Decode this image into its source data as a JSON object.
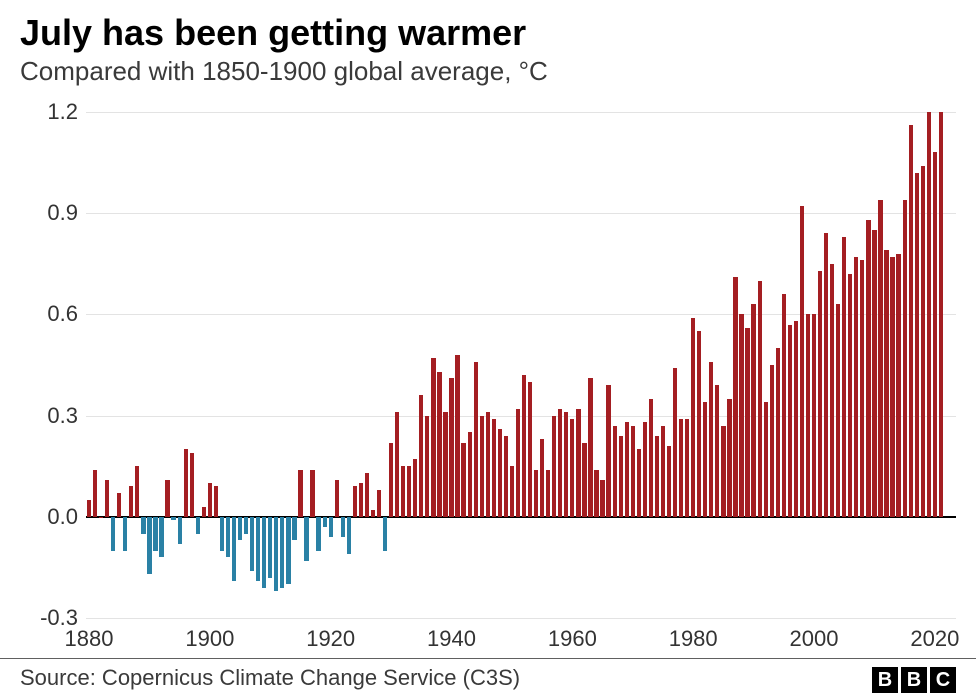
{
  "title": "July has been getting warmer",
  "subtitle": "Compared with 1850-1900 global average, °C",
  "source": "Source: Copernicus Climate Change Service (C3S)",
  "logo_letters": [
    "B",
    "B",
    "C"
  ],
  "chart": {
    "type": "bar",
    "pos_color": "#a41e22",
    "neg_color": "#2a81a5",
    "background_color": "#ffffff",
    "grid_color": "#e3e3e3",
    "zero_line_color": "#000000",
    "title_fontsize": 36,
    "subtitle_fontsize": 26,
    "tick_fontsize": 22,
    "ylim": [
      -0.3,
      1.2
    ],
    "ytick_step": 0.3,
    "yticks": [
      -0.3,
      0.0,
      0.3,
      0.6,
      0.9,
      1.2
    ],
    "xticks": [
      1880,
      1900,
      1920,
      1940,
      1960,
      1980,
      2000,
      2020
    ],
    "x_start": 1880,
    "x_end": 2023,
    "bar_rel_width": 0.7,
    "series": [
      {
        "year": 1880,
        "value": 0.05
      },
      {
        "year": 1881,
        "value": 0.14
      },
      {
        "year": 1882,
        "value": 0.0
      },
      {
        "year": 1883,
        "value": 0.11
      },
      {
        "year": 1884,
        "value": -0.1
      },
      {
        "year": 1885,
        "value": 0.07
      },
      {
        "year": 1886,
        "value": -0.1
      },
      {
        "year": 1887,
        "value": 0.09
      },
      {
        "year": 1888,
        "value": 0.15
      },
      {
        "year": 1889,
        "value": -0.05
      },
      {
        "year": 1890,
        "value": -0.17
      },
      {
        "year": 1891,
        "value": -0.1
      },
      {
        "year": 1892,
        "value": -0.12
      },
      {
        "year": 1893,
        "value": 0.11
      },
      {
        "year": 1894,
        "value": -0.01
      },
      {
        "year": 1895,
        "value": -0.08
      },
      {
        "year": 1896,
        "value": 0.2
      },
      {
        "year": 1897,
        "value": 0.19
      },
      {
        "year": 1898,
        "value": -0.05
      },
      {
        "year": 1899,
        "value": 0.03
      },
      {
        "year": 1900,
        "value": 0.1
      },
      {
        "year": 1901,
        "value": 0.09
      },
      {
        "year": 1902,
        "value": -0.1
      },
      {
        "year": 1903,
        "value": -0.12
      },
      {
        "year": 1904,
        "value": -0.19
      },
      {
        "year": 1905,
        "value": -0.07
      },
      {
        "year": 1906,
        "value": -0.05
      },
      {
        "year": 1907,
        "value": -0.16
      },
      {
        "year": 1908,
        "value": -0.19
      },
      {
        "year": 1909,
        "value": -0.21
      },
      {
        "year": 1910,
        "value": -0.18
      },
      {
        "year": 1911,
        "value": -0.22
      },
      {
        "year": 1912,
        "value": -0.21
      },
      {
        "year": 1913,
        "value": -0.2
      },
      {
        "year": 1914,
        "value": -0.07
      },
      {
        "year": 1915,
        "value": 0.14
      },
      {
        "year": 1916,
        "value": -0.13
      },
      {
        "year": 1917,
        "value": 0.14
      },
      {
        "year": 1918,
        "value": -0.1
      },
      {
        "year": 1919,
        "value": -0.03
      },
      {
        "year": 1920,
        "value": -0.06
      },
      {
        "year": 1921,
        "value": 0.11
      },
      {
        "year": 1922,
        "value": -0.06
      },
      {
        "year": 1923,
        "value": -0.11
      },
      {
        "year": 1924,
        "value": 0.09
      },
      {
        "year": 1925,
        "value": 0.1
      },
      {
        "year": 1926,
        "value": 0.13
      },
      {
        "year": 1927,
        "value": 0.02
      },
      {
        "year": 1928,
        "value": 0.08
      },
      {
        "year": 1929,
        "value": -0.1
      },
      {
        "year": 1930,
        "value": 0.22
      },
      {
        "year": 1931,
        "value": 0.31
      },
      {
        "year": 1932,
        "value": 0.15
      },
      {
        "year": 1933,
        "value": 0.15
      },
      {
        "year": 1934,
        "value": 0.17
      },
      {
        "year": 1935,
        "value": 0.36
      },
      {
        "year": 1936,
        "value": 0.3
      },
      {
        "year": 1937,
        "value": 0.47
      },
      {
        "year": 1938,
        "value": 0.43
      },
      {
        "year": 1939,
        "value": 0.31
      },
      {
        "year": 1940,
        "value": 0.41
      },
      {
        "year": 1941,
        "value": 0.48
      },
      {
        "year": 1942,
        "value": 0.22
      },
      {
        "year": 1943,
        "value": 0.25
      },
      {
        "year": 1944,
        "value": 0.46
      },
      {
        "year": 1945,
        "value": 0.3
      },
      {
        "year": 1946,
        "value": 0.31
      },
      {
        "year": 1947,
        "value": 0.29
      },
      {
        "year": 1948,
        "value": 0.26
      },
      {
        "year": 1949,
        "value": 0.24
      },
      {
        "year": 1950,
        "value": 0.15
      },
      {
        "year": 1951,
        "value": 0.32
      },
      {
        "year": 1952,
        "value": 0.42
      },
      {
        "year": 1953,
        "value": 0.4
      },
      {
        "year": 1954,
        "value": 0.14
      },
      {
        "year": 1955,
        "value": 0.23
      },
      {
        "year": 1956,
        "value": 0.14
      },
      {
        "year": 1957,
        "value": 0.3
      },
      {
        "year": 1958,
        "value": 0.32
      },
      {
        "year": 1959,
        "value": 0.31
      },
      {
        "year": 1960,
        "value": 0.29
      },
      {
        "year": 1961,
        "value": 0.32
      },
      {
        "year": 1962,
        "value": 0.22
      },
      {
        "year": 1963,
        "value": 0.41
      },
      {
        "year": 1964,
        "value": 0.14
      },
      {
        "year": 1965,
        "value": 0.11
      },
      {
        "year": 1966,
        "value": 0.39
      },
      {
        "year": 1967,
        "value": 0.27
      },
      {
        "year": 1968,
        "value": 0.24
      },
      {
        "year": 1969,
        "value": 0.28
      },
      {
        "year": 1970,
        "value": 0.27
      },
      {
        "year": 1971,
        "value": 0.2
      },
      {
        "year": 1972,
        "value": 0.28
      },
      {
        "year": 1973,
        "value": 0.35
      },
      {
        "year": 1974,
        "value": 0.24
      },
      {
        "year": 1975,
        "value": 0.27
      },
      {
        "year": 1976,
        "value": 0.21
      },
      {
        "year": 1977,
        "value": 0.44
      },
      {
        "year": 1978,
        "value": 0.29
      },
      {
        "year": 1979,
        "value": 0.29
      },
      {
        "year": 1980,
        "value": 0.59
      },
      {
        "year": 1981,
        "value": 0.55
      },
      {
        "year": 1982,
        "value": 0.34
      },
      {
        "year": 1983,
        "value": 0.46
      },
      {
        "year": 1984,
        "value": 0.39
      },
      {
        "year": 1985,
        "value": 0.27
      },
      {
        "year": 1986,
        "value": 0.35
      },
      {
        "year": 1987,
        "value": 0.71
      },
      {
        "year": 1988,
        "value": 0.6
      },
      {
        "year": 1989,
        "value": 0.56
      },
      {
        "year": 1990,
        "value": 0.63
      },
      {
        "year": 1991,
        "value": 0.7
      },
      {
        "year": 1992,
        "value": 0.34
      },
      {
        "year": 1993,
        "value": 0.45
      },
      {
        "year": 1994,
        "value": 0.5
      },
      {
        "year": 1995,
        "value": 0.66
      },
      {
        "year": 1996,
        "value": 0.57
      },
      {
        "year": 1997,
        "value": 0.58
      },
      {
        "year": 1998,
        "value": 0.92
      },
      {
        "year": 1999,
        "value": 0.6
      },
      {
        "year": 2000,
        "value": 0.6
      },
      {
        "year": 2001,
        "value": 0.73
      },
      {
        "year": 2002,
        "value": 0.84
      },
      {
        "year": 2003,
        "value": 0.75
      },
      {
        "year": 2004,
        "value": 0.63
      },
      {
        "year": 2005,
        "value": 0.83
      },
      {
        "year": 2006,
        "value": 0.72
      },
      {
        "year": 2007,
        "value": 0.77
      },
      {
        "year": 2008,
        "value": 0.76
      },
      {
        "year": 2009,
        "value": 0.88
      },
      {
        "year": 2010,
        "value": 0.85
      },
      {
        "year": 2011,
        "value": 0.94
      },
      {
        "year": 2012,
        "value": 0.79
      },
      {
        "year": 2013,
        "value": 0.77
      },
      {
        "year": 2014,
        "value": 0.78
      },
      {
        "year": 2015,
        "value": 0.94
      },
      {
        "year": 2016,
        "value": 1.16
      },
      {
        "year": 2017,
        "value": 1.02
      },
      {
        "year": 2018,
        "value": 1.04
      },
      {
        "year": 2019,
        "value": 1.2
      },
      {
        "year": 2020,
        "value": 1.08
      },
      {
        "year": 2021,
        "value": 1.2
      }
    ]
  }
}
